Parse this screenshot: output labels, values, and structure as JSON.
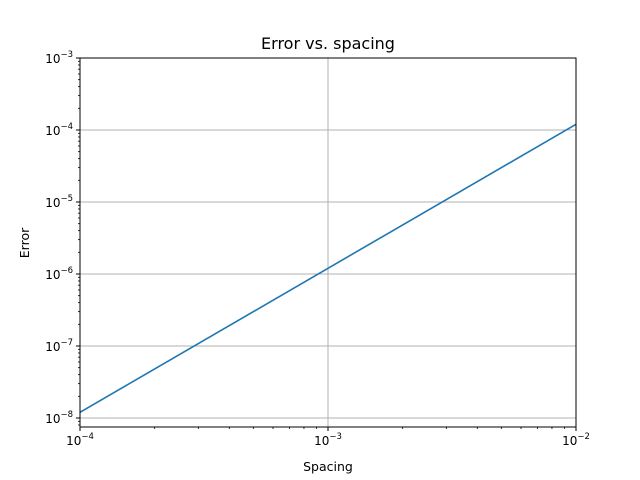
{
  "chart_data": {
    "type": "line",
    "title": "Error vs. spacing",
    "xlabel": "Spacing",
    "ylabel": "Error",
    "xscale": "log",
    "yscale": "log",
    "xlim": [
      0.0001,
      0.01
    ],
    "ylim": [
      7.5e-09,
      0.001
    ],
    "grid": true,
    "legend": "none",
    "x_ticks": [
      {
        "base": "10",
        "exp": "−4",
        "value": 0.0001
      },
      {
        "base": "10",
        "exp": "−3",
        "value": 0.001
      },
      {
        "base": "10",
        "exp": "−2",
        "value": 0.01
      }
    ],
    "y_ticks": [
      {
        "base": "10",
        "exp": "−8",
        "value": 1e-08
      },
      {
        "base": "10",
        "exp": "−7",
        "value": 1e-07
      },
      {
        "base": "10",
        "exp": "−6",
        "value": 1e-06
      },
      {
        "base": "10",
        "exp": "−5",
        "value": 1e-05
      },
      {
        "base": "10",
        "exp": "−4",
        "value": 0.0001
      },
      {
        "base": "10",
        "exp": "−3",
        "value": 0.001
      }
    ],
    "series": [
      {
        "color": "#1f77b4",
        "x": [
          0.0001,
          0.001,
          0.01
        ],
        "y": [
          1.2e-08,
          1.2e-06,
          0.00012
        ]
      }
    ]
  },
  "colors": {
    "grid": "#b0b0b0",
    "axis": "#000000",
    "background": "#ffffff"
  }
}
